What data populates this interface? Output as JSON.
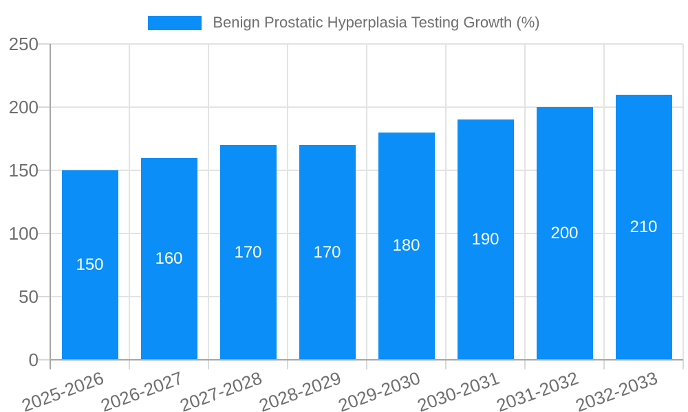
{
  "chart_data": {
    "type": "bar",
    "title": "Benign Prostatic Hyperplasia Testing Growth (%)",
    "xlabel": "",
    "ylabel": "",
    "categories": [
      "2025-2026",
      "2026-2027",
      "2027-2028",
      "2028-2029",
      "2029-2030",
      "2030-2031",
      "2031-2032",
      "2032-2033"
    ],
    "values": [
      150,
      160,
      170,
      170,
      180,
      190,
      200,
      210
    ],
    "value_labels": [
      "150",
      "160",
      "170",
      "170",
      "180",
      "190",
      "200",
      "210"
    ],
    "ylim": [
      0,
      250
    ],
    "yticks": [
      0,
      50,
      100,
      150,
      200,
      250
    ],
    "grid": true,
    "legend_position": "top-center",
    "x_label_rotation_deg": -20,
    "colors": {
      "bar": "#0b8ef8",
      "grid_line": "#e3e3e3",
      "axis_line": "#a6a6a6",
      "tick_line": "#d9d9d9",
      "tick_text": "#6e6e6e",
      "value_label_text": "#ffffff",
      "background": "#ffffff"
    }
  }
}
